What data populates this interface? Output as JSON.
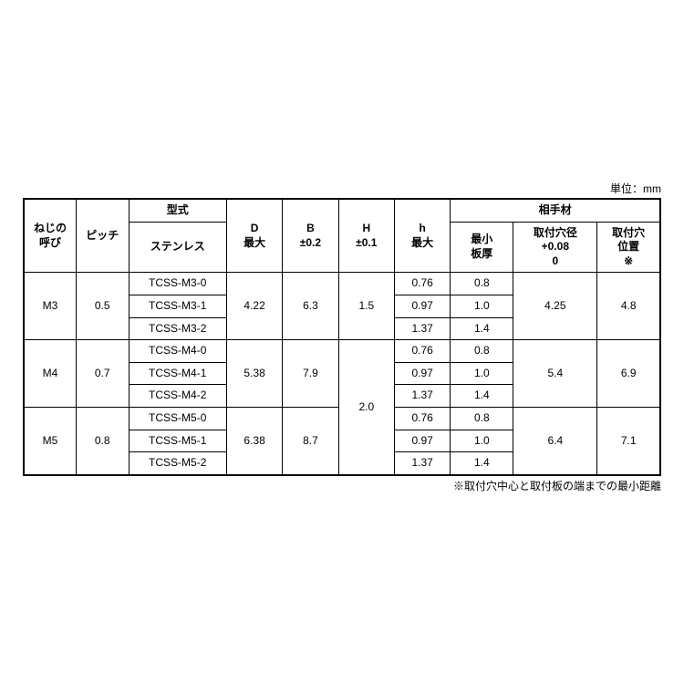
{
  "unit_label": "単位：mm",
  "headers": {
    "screw": "ねじの\n呼び",
    "pitch": "ピッチ",
    "model_group": "型式",
    "model_sub": "ステンレス",
    "D": "D\n最大",
    "B": "B\n±0.2",
    "Hupper": "H\n±0.1",
    "hlower": "h\n最大",
    "mating_group": "相手材",
    "min_thk": "最小\n板厚",
    "hole_dia": "取付穴径\n+0.08\n0",
    "hole_pos": "取付穴\n位置\n※"
  },
  "groups": [
    {
      "screw": "M3",
      "pitch": "0.5",
      "D": "4.22",
      "B": "6.3",
      "Hupper": "1.5",
      "hole_dia": "4.25",
      "hole_pos": "4.8",
      "rows": [
        {
          "model": "TCSS-M3-0",
          "h": "0.76",
          "min_thk": "0.8"
        },
        {
          "model": "TCSS-M3-1",
          "h": "0.97",
          "min_thk": "1.0"
        },
        {
          "model": "TCSS-M3-2",
          "h": "1.37",
          "min_thk": "1.4"
        }
      ]
    },
    {
      "screw": "M4",
      "pitch": "0.7",
      "D": "5.38",
      "B": "7.9",
      "hole_dia": "5.4",
      "hole_pos": "6.9",
      "rows": [
        {
          "model": "TCSS-M4-0",
          "h": "0.76",
          "min_thk": "0.8"
        },
        {
          "model": "TCSS-M4-1",
          "h": "0.97",
          "min_thk": "1.0"
        },
        {
          "model": "TCSS-M4-2",
          "h": "1.37",
          "min_thk": "1.4"
        }
      ]
    },
    {
      "screw": "M5",
      "pitch": "0.8",
      "D": "6.38",
      "B": "8.7",
      "hole_dia": "6.4",
      "hole_pos": "7.1",
      "rows": [
        {
          "model": "TCSS-M5-0",
          "h": "0.76",
          "min_thk": "0.8"
        },
        {
          "model": "TCSS-M5-1",
          "h": "0.97",
          "min_thk": "1.0"
        },
        {
          "model": "TCSS-M5-2",
          "h": "1.37",
          "min_thk": "1.4"
        }
      ]
    }
  ],
  "H_lower_span": "2.0",
  "footnote": "※取付穴中心と取付板の端までの最小距離"
}
